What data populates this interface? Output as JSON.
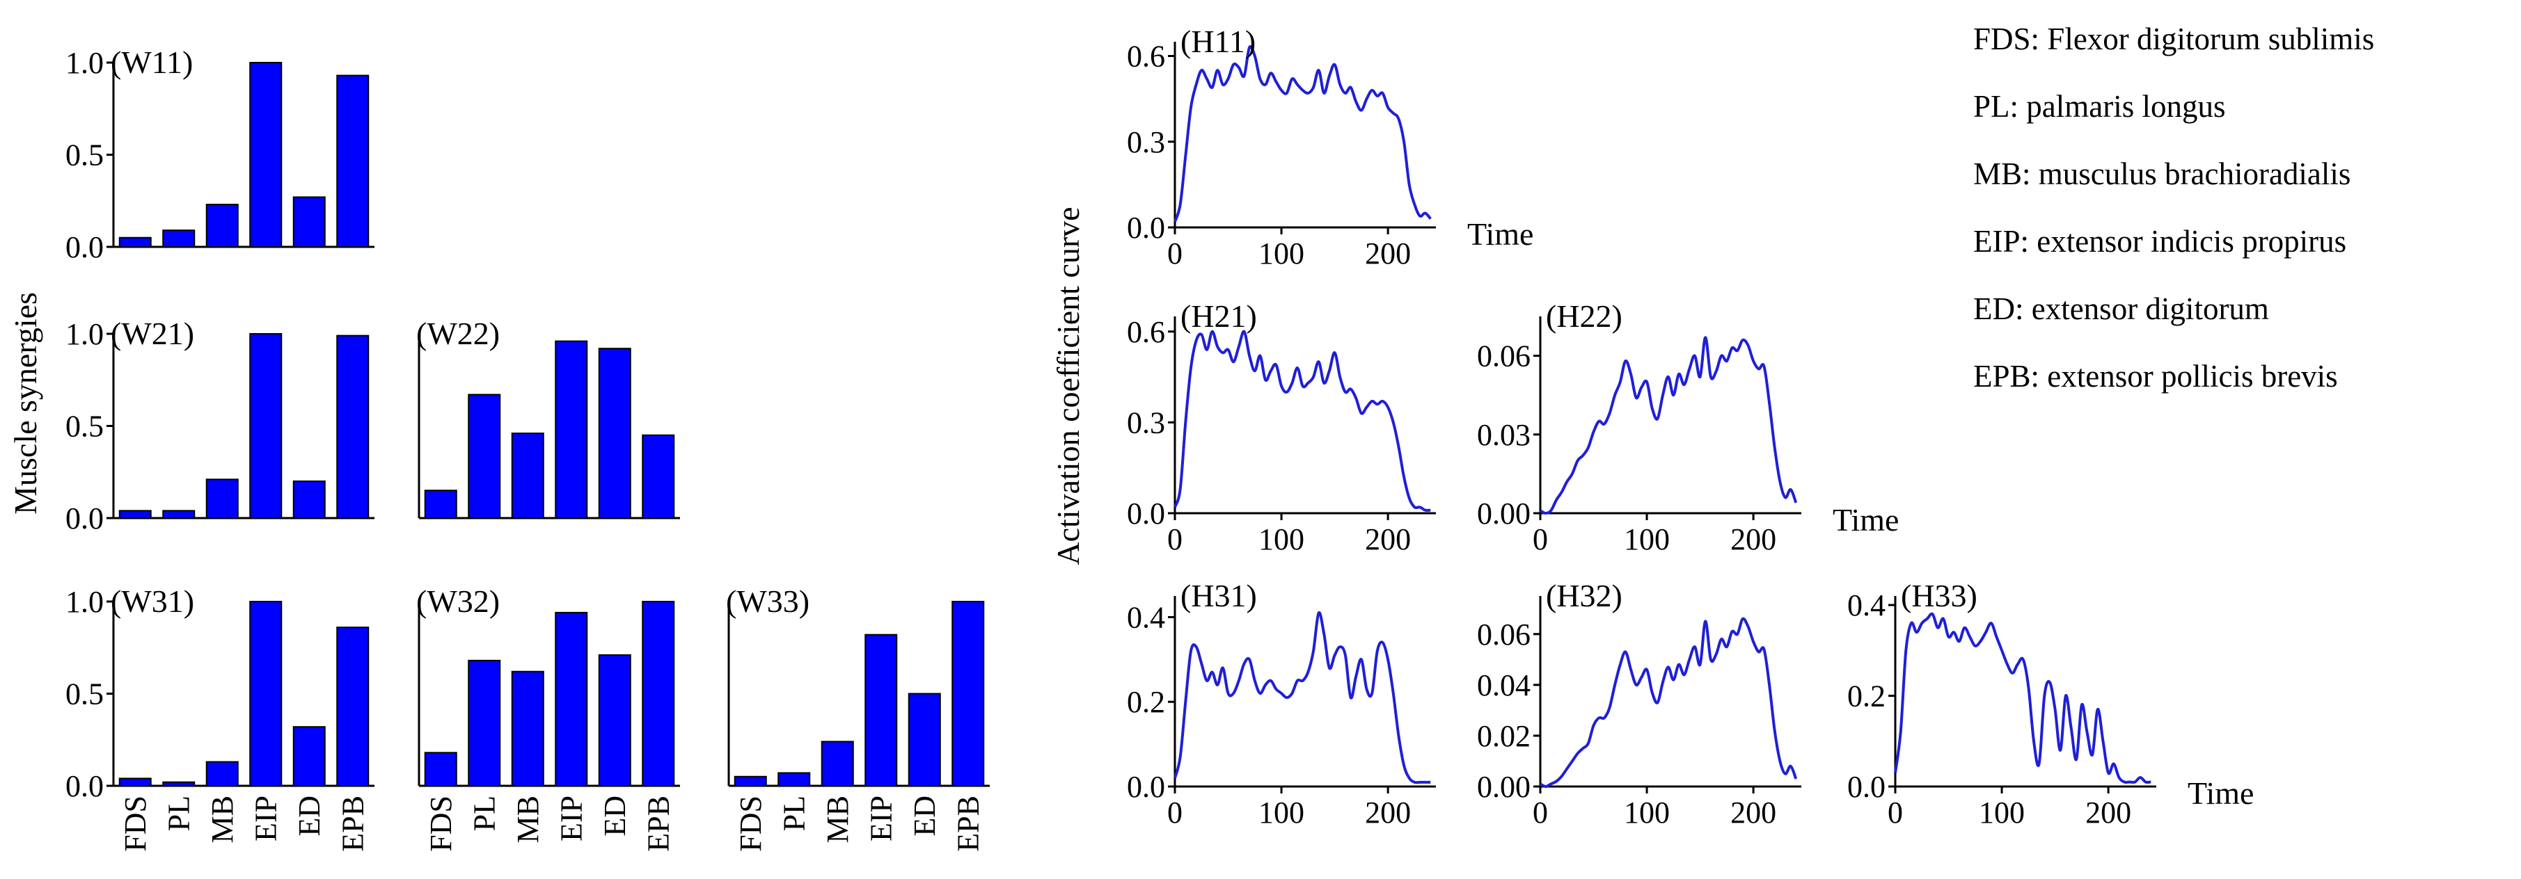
{
  "labels": {
    "left_ylabel": "Muscle synergies",
    "right_ylabel": "Activation coefficient curve",
    "time_label": "Time"
  },
  "legend": [
    "FDS: Flexor digitorum sublimis",
    "PL: palmaris longus",
    "MB: musculus brachioradialis",
    "EIP: extensor indicis propirus",
    "ED: extensor digitorum",
    "EPB: extensor pollicis brevis"
  ],
  "colors": {
    "bar": "#0000ff",
    "line": "#1f1fd8",
    "axis": "#000000"
  },
  "chart_data": [
    {
      "id": "W11",
      "type": "bar",
      "title": "(W11)",
      "categories": [
        "FDS",
        "PL",
        "MB",
        "EIP",
        "ED",
        "EPB"
      ],
      "values": [
        0.05,
        0.09,
        0.23,
        1.0,
        0.27,
        0.93
      ],
      "ylim": [
        0,
        1
      ],
      "yticks": [
        "0.0",
        "0.5",
        "1.0"
      ],
      "show_xticklabels": false
    },
    {
      "id": "W21",
      "type": "bar",
      "title": "(W21)",
      "categories": [
        "FDS",
        "PL",
        "MB",
        "EIP",
        "ED",
        "EPB"
      ],
      "values": [
        0.04,
        0.04,
        0.21,
        1.0,
        0.2,
        0.99
      ],
      "ylim": [
        0,
        1
      ],
      "yticks": [
        "0.0",
        "0.5",
        "1.0"
      ],
      "show_xticklabels": false
    },
    {
      "id": "W22",
      "type": "bar",
      "title": "(W22)",
      "categories": [
        "FDS",
        "PL",
        "MB",
        "EIP",
        "ED",
        "EPB"
      ],
      "values": [
        0.15,
        0.67,
        0.46,
        0.96,
        0.92,
        0.45
      ],
      "ylim": [
        0,
        1
      ],
      "yticks": [],
      "show_xticklabels": false
    },
    {
      "id": "W31",
      "type": "bar",
      "title": "(W31)",
      "categories": [
        "FDS",
        "PL",
        "MB",
        "EIP",
        "ED",
        "EPB"
      ],
      "values": [
        0.04,
        0.02,
        0.13,
        1.0,
        0.32,
        0.86
      ],
      "ylim": [
        0,
        1
      ],
      "yticks": [
        "0.0",
        "0.5",
        "1.0"
      ],
      "show_xticklabels": true
    },
    {
      "id": "W32",
      "type": "bar",
      "title": "(W32)",
      "categories": [
        "FDS",
        "PL",
        "MB",
        "EIP",
        "ED",
        "EPB"
      ],
      "values": [
        0.18,
        0.68,
        0.62,
        0.94,
        0.71,
        1.0
      ],
      "ylim": [
        0,
        1
      ],
      "yticks": [],
      "show_xticklabels": true
    },
    {
      "id": "W33",
      "type": "bar",
      "title": "(W33)",
      "categories": [
        "FDS",
        "PL",
        "MB",
        "EIP",
        "ED",
        "EPB"
      ],
      "values": [
        0.05,
        0.07,
        0.24,
        0.82,
        0.5,
        1.0
      ],
      "ylim": [
        0,
        1
      ],
      "yticks": [],
      "show_xticklabels": true
    },
    {
      "id": "H11",
      "type": "line",
      "title": "(H11)",
      "xlim": [
        0,
        245
      ],
      "ylim": [
        0,
        0.65
      ],
      "xticks": [
        0,
        100,
        200
      ],
      "yticks": [
        0,
        0.3,
        0.6
      ],
      "ytick_labels": [
        "0.0",
        "0.3",
        "0.6"
      ],
      "xlabel": "Time",
      "x": [
        0,
        5,
        10,
        15,
        20,
        25,
        30,
        35,
        40,
        45,
        50,
        55,
        60,
        65,
        70,
        75,
        80,
        85,
        90,
        95,
        100,
        105,
        110,
        115,
        120,
        125,
        130,
        135,
        140,
        145,
        150,
        155,
        160,
        165,
        170,
        175,
        180,
        185,
        190,
        195,
        200,
        205,
        210,
        215,
        220,
        225,
        230,
        235,
        240
      ],
      "y": [
        0.02,
        0.08,
        0.25,
        0.42,
        0.5,
        0.55,
        0.52,
        0.49,
        0.55,
        0.5,
        0.52,
        0.57,
        0.56,
        0.53,
        0.63,
        0.6,
        0.52,
        0.5,
        0.54,
        0.51,
        0.48,
        0.47,
        0.52,
        0.5,
        0.48,
        0.47,
        0.49,
        0.55,
        0.47,
        0.53,
        0.57,
        0.5,
        0.47,
        0.49,
        0.44,
        0.41,
        0.45,
        0.48,
        0.46,
        0.47,
        0.42,
        0.4,
        0.38,
        0.3,
        0.15,
        0.08,
        0.04,
        0.05,
        0.03
      ]
    },
    {
      "id": "H21",
      "type": "line",
      "title": "(H21)",
      "xlim": [
        0,
        245
      ],
      "ylim": [
        0,
        0.65
      ],
      "xticks": [
        0,
        100,
        200
      ],
      "yticks": [
        0,
        0.3,
        0.6
      ],
      "ytick_labels": [
        "0.0",
        "0.3",
        "0.6"
      ],
      "xlabel": "",
      "x": [
        0,
        5,
        10,
        15,
        20,
        25,
        30,
        35,
        40,
        45,
        50,
        55,
        60,
        65,
        70,
        75,
        80,
        85,
        90,
        95,
        100,
        105,
        110,
        115,
        120,
        125,
        130,
        135,
        140,
        145,
        150,
        155,
        160,
        165,
        170,
        175,
        180,
        185,
        190,
        195,
        200,
        205,
        210,
        215,
        220,
        225,
        230,
        235,
        240
      ],
      "y": [
        0.02,
        0.08,
        0.3,
        0.48,
        0.57,
        0.59,
        0.54,
        0.6,
        0.55,
        0.53,
        0.54,
        0.5,
        0.55,
        0.6,
        0.52,
        0.47,
        0.52,
        0.44,
        0.47,
        0.49,
        0.42,
        0.4,
        0.43,
        0.48,
        0.42,
        0.43,
        0.45,
        0.5,
        0.43,
        0.47,
        0.53,
        0.45,
        0.4,
        0.41,
        0.38,
        0.33,
        0.35,
        0.37,
        0.36,
        0.37,
        0.35,
        0.3,
        0.22,
        0.12,
        0.05,
        0.02,
        0.02,
        0.01,
        0.01
      ]
    },
    {
      "id": "H22",
      "type": "line",
      "title": "(H22)",
      "xlim": [
        0,
        245
      ],
      "ylim": [
        0,
        0.075
      ],
      "xticks": [
        0,
        100,
        200
      ],
      "yticks": [
        0,
        0.03,
        0.06
      ],
      "ytick_labels": [
        "0.00",
        "0.03",
        "0.06"
      ],
      "xlabel": "Time",
      "x": [
        0,
        5,
        10,
        15,
        20,
        25,
        30,
        35,
        40,
        45,
        50,
        55,
        60,
        65,
        70,
        75,
        80,
        85,
        90,
        95,
        100,
        105,
        110,
        115,
        120,
        125,
        130,
        135,
        140,
        145,
        150,
        155,
        160,
        165,
        170,
        175,
        180,
        185,
        190,
        195,
        200,
        205,
        210,
        215,
        220,
        225,
        230,
        235,
        240
      ],
      "y": [
        0.001,
        0.0,
        0.001,
        0.005,
        0.008,
        0.012,
        0.015,
        0.02,
        0.022,
        0.025,
        0.031,
        0.035,
        0.034,
        0.038,
        0.045,
        0.05,
        0.058,
        0.053,
        0.044,
        0.048,
        0.05,
        0.04,
        0.036,
        0.045,
        0.052,
        0.045,
        0.053,
        0.049,
        0.055,
        0.06,
        0.052,
        0.067,
        0.052,
        0.054,
        0.06,
        0.058,
        0.063,
        0.062,
        0.066,
        0.064,
        0.058,
        0.055,
        0.056,
        0.042,
        0.025,
        0.012,
        0.006,
        0.009,
        0.004
      ]
    },
    {
      "id": "H31",
      "type": "line",
      "title": "(H31)",
      "xlim": [
        0,
        245
      ],
      "ylim": [
        0,
        0.45
      ],
      "xticks": [
        0,
        100,
        200
      ],
      "yticks": [
        0,
        0.2,
        0.4
      ],
      "ytick_labels": [
        "0.0",
        "0.2",
        "0.4"
      ],
      "xlabel": "",
      "x": [
        0,
        5,
        10,
        15,
        20,
        25,
        30,
        35,
        40,
        45,
        50,
        55,
        60,
        65,
        70,
        75,
        80,
        85,
        90,
        95,
        100,
        105,
        110,
        115,
        120,
        125,
        130,
        135,
        140,
        145,
        150,
        155,
        160,
        165,
        170,
        175,
        180,
        185,
        190,
        195,
        200,
        205,
        210,
        215,
        220,
        225,
        230,
        235,
        240
      ],
      "y": [
        0.02,
        0.07,
        0.2,
        0.32,
        0.33,
        0.29,
        0.25,
        0.27,
        0.24,
        0.28,
        0.22,
        0.22,
        0.25,
        0.29,
        0.3,
        0.25,
        0.22,
        0.24,
        0.25,
        0.23,
        0.22,
        0.21,
        0.22,
        0.25,
        0.25,
        0.27,
        0.32,
        0.41,
        0.36,
        0.28,
        0.31,
        0.33,
        0.31,
        0.21,
        0.26,
        0.3,
        0.23,
        0.22,
        0.32,
        0.34,
        0.3,
        0.22,
        0.12,
        0.05,
        0.02,
        0.01,
        0.01,
        0.01,
        0.01
      ]
    },
    {
      "id": "H32",
      "type": "line",
      "title": "(H32)",
      "xlim": [
        0,
        245
      ],
      "ylim": [
        0,
        0.075
      ],
      "xticks": [
        0,
        100,
        200
      ],
      "yticks": [
        0,
        0.02,
        0.04,
        0.06
      ],
      "ytick_labels": [
        "0.00",
        "0.02",
        "0.04",
        "0.06"
      ],
      "xlabel": "",
      "x": [
        0,
        5,
        10,
        15,
        20,
        25,
        30,
        35,
        40,
        45,
        50,
        55,
        60,
        65,
        70,
        75,
        80,
        85,
        90,
        95,
        100,
        105,
        110,
        115,
        120,
        125,
        130,
        135,
        140,
        145,
        150,
        155,
        160,
        165,
        170,
        175,
        180,
        185,
        190,
        195,
        200,
        205,
        210,
        215,
        220,
        225,
        230,
        235,
        240
      ],
      "y": [
        0.001,
        0.0,
        0.001,
        0.002,
        0.004,
        0.007,
        0.01,
        0.013,
        0.015,
        0.017,
        0.024,
        0.027,
        0.027,
        0.031,
        0.04,
        0.048,
        0.053,
        0.046,
        0.04,
        0.043,
        0.046,
        0.037,
        0.033,
        0.041,
        0.047,
        0.042,
        0.048,
        0.044,
        0.05,
        0.055,
        0.048,
        0.065,
        0.05,
        0.052,
        0.058,
        0.055,
        0.061,
        0.06,
        0.066,
        0.063,
        0.057,
        0.053,
        0.054,
        0.04,
        0.022,
        0.01,
        0.005,
        0.008,
        0.003
      ]
    },
    {
      "id": "H33",
      "type": "line",
      "title": "(H33)",
      "xlim": [
        0,
        245
      ],
      "ylim": [
        0,
        0.42
      ],
      "xticks": [
        0,
        100,
        200
      ],
      "yticks": [
        0,
        0.2,
        0.4
      ],
      "ytick_labels": [
        "0.0",
        "0.2",
        "0.4"
      ],
      "xlabel": "Time",
      "x": [
        0,
        5,
        10,
        15,
        20,
        25,
        30,
        35,
        40,
        45,
        50,
        55,
        60,
        65,
        70,
        75,
        80,
        85,
        90,
        95,
        100,
        105,
        110,
        115,
        120,
        125,
        130,
        135,
        140,
        145,
        150,
        155,
        160,
        165,
        170,
        175,
        180,
        185,
        190,
        195,
        200,
        205,
        210,
        215,
        220,
        225,
        230,
        235,
        240
      ],
      "y": [
        0.03,
        0.12,
        0.3,
        0.36,
        0.34,
        0.36,
        0.37,
        0.38,
        0.35,
        0.37,
        0.33,
        0.34,
        0.32,
        0.35,
        0.33,
        0.31,
        0.32,
        0.34,
        0.36,
        0.33,
        0.3,
        0.27,
        0.25,
        0.27,
        0.28,
        0.22,
        0.1,
        0.05,
        0.2,
        0.23,
        0.17,
        0.08,
        0.2,
        0.13,
        0.06,
        0.18,
        0.12,
        0.07,
        0.17,
        0.1,
        0.03,
        0.05,
        0.02,
        0.01,
        0.01,
        0.01,
        0.02,
        0.01,
        0.01
      ]
    }
  ]
}
